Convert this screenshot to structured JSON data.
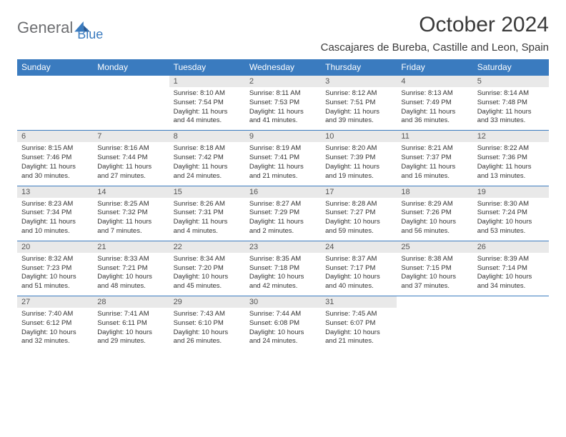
{
  "logo": {
    "text1": "General",
    "text2": "Blue"
  },
  "title": "October 2024",
  "location": "Cascajares de Bureba, Castille and Leon, Spain",
  "colors": {
    "header_bg": "#3a7bbf",
    "header_text": "#ffffff",
    "daynum_bg": "#e9e9e9",
    "border": "#3a7bbf",
    "logo_gray": "#6d6e71",
    "logo_blue": "#3a7bbf"
  },
  "weekdays": [
    "Sunday",
    "Monday",
    "Tuesday",
    "Wednesday",
    "Thursday",
    "Friday",
    "Saturday"
  ],
  "weeks": [
    [
      {
        "num": "",
        "sunrise": "",
        "sunset": "",
        "daylight": "",
        "empty": true
      },
      {
        "num": "",
        "sunrise": "",
        "sunset": "",
        "daylight": "",
        "empty": true
      },
      {
        "num": "1",
        "sunrise": "Sunrise: 8:10 AM",
        "sunset": "Sunset: 7:54 PM",
        "daylight": "Daylight: 11 hours and 44 minutes."
      },
      {
        "num": "2",
        "sunrise": "Sunrise: 8:11 AM",
        "sunset": "Sunset: 7:53 PM",
        "daylight": "Daylight: 11 hours and 41 minutes."
      },
      {
        "num": "3",
        "sunrise": "Sunrise: 8:12 AM",
        "sunset": "Sunset: 7:51 PM",
        "daylight": "Daylight: 11 hours and 39 minutes."
      },
      {
        "num": "4",
        "sunrise": "Sunrise: 8:13 AM",
        "sunset": "Sunset: 7:49 PM",
        "daylight": "Daylight: 11 hours and 36 minutes."
      },
      {
        "num": "5",
        "sunrise": "Sunrise: 8:14 AM",
        "sunset": "Sunset: 7:48 PM",
        "daylight": "Daylight: 11 hours and 33 minutes."
      }
    ],
    [
      {
        "num": "6",
        "sunrise": "Sunrise: 8:15 AM",
        "sunset": "Sunset: 7:46 PM",
        "daylight": "Daylight: 11 hours and 30 minutes."
      },
      {
        "num": "7",
        "sunrise": "Sunrise: 8:16 AM",
        "sunset": "Sunset: 7:44 PM",
        "daylight": "Daylight: 11 hours and 27 minutes."
      },
      {
        "num": "8",
        "sunrise": "Sunrise: 8:18 AM",
        "sunset": "Sunset: 7:42 PM",
        "daylight": "Daylight: 11 hours and 24 minutes."
      },
      {
        "num": "9",
        "sunrise": "Sunrise: 8:19 AM",
        "sunset": "Sunset: 7:41 PM",
        "daylight": "Daylight: 11 hours and 21 minutes."
      },
      {
        "num": "10",
        "sunrise": "Sunrise: 8:20 AM",
        "sunset": "Sunset: 7:39 PM",
        "daylight": "Daylight: 11 hours and 19 minutes."
      },
      {
        "num": "11",
        "sunrise": "Sunrise: 8:21 AM",
        "sunset": "Sunset: 7:37 PM",
        "daylight": "Daylight: 11 hours and 16 minutes."
      },
      {
        "num": "12",
        "sunrise": "Sunrise: 8:22 AM",
        "sunset": "Sunset: 7:36 PM",
        "daylight": "Daylight: 11 hours and 13 minutes."
      }
    ],
    [
      {
        "num": "13",
        "sunrise": "Sunrise: 8:23 AM",
        "sunset": "Sunset: 7:34 PM",
        "daylight": "Daylight: 11 hours and 10 minutes."
      },
      {
        "num": "14",
        "sunrise": "Sunrise: 8:25 AM",
        "sunset": "Sunset: 7:32 PM",
        "daylight": "Daylight: 11 hours and 7 minutes."
      },
      {
        "num": "15",
        "sunrise": "Sunrise: 8:26 AM",
        "sunset": "Sunset: 7:31 PM",
        "daylight": "Daylight: 11 hours and 4 minutes."
      },
      {
        "num": "16",
        "sunrise": "Sunrise: 8:27 AM",
        "sunset": "Sunset: 7:29 PM",
        "daylight": "Daylight: 11 hours and 2 minutes."
      },
      {
        "num": "17",
        "sunrise": "Sunrise: 8:28 AM",
        "sunset": "Sunset: 7:27 PM",
        "daylight": "Daylight: 10 hours and 59 minutes."
      },
      {
        "num": "18",
        "sunrise": "Sunrise: 8:29 AM",
        "sunset": "Sunset: 7:26 PM",
        "daylight": "Daylight: 10 hours and 56 minutes."
      },
      {
        "num": "19",
        "sunrise": "Sunrise: 8:30 AM",
        "sunset": "Sunset: 7:24 PM",
        "daylight": "Daylight: 10 hours and 53 minutes."
      }
    ],
    [
      {
        "num": "20",
        "sunrise": "Sunrise: 8:32 AM",
        "sunset": "Sunset: 7:23 PM",
        "daylight": "Daylight: 10 hours and 51 minutes."
      },
      {
        "num": "21",
        "sunrise": "Sunrise: 8:33 AM",
        "sunset": "Sunset: 7:21 PM",
        "daylight": "Daylight: 10 hours and 48 minutes."
      },
      {
        "num": "22",
        "sunrise": "Sunrise: 8:34 AM",
        "sunset": "Sunset: 7:20 PM",
        "daylight": "Daylight: 10 hours and 45 minutes."
      },
      {
        "num": "23",
        "sunrise": "Sunrise: 8:35 AM",
        "sunset": "Sunset: 7:18 PM",
        "daylight": "Daylight: 10 hours and 42 minutes."
      },
      {
        "num": "24",
        "sunrise": "Sunrise: 8:37 AM",
        "sunset": "Sunset: 7:17 PM",
        "daylight": "Daylight: 10 hours and 40 minutes."
      },
      {
        "num": "25",
        "sunrise": "Sunrise: 8:38 AM",
        "sunset": "Sunset: 7:15 PM",
        "daylight": "Daylight: 10 hours and 37 minutes."
      },
      {
        "num": "26",
        "sunrise": "Sunrise: 8:39 AM",
        "sunset": "Sunset: 7:14 PM",
        "daylight": "Daylight: 10 hours and 34 minutes."
      }
    ],
    [
      {
        "num": "27",
        "sunrise": "Sunrise: 7:40 AM",
        "sunset": "Sunset: 6:12 PM",
        "daylight": "Daylight: 10 hours and 32 minutes."
      },
      {
        "num": "28",
        "sunrise": "Sunrise: 7:41 AM",
        "sunset": "Sunset: 6:11 PM",
        "daylight": "Daylight: 10 hours and 29 minutes."
      },
      {
        "num": "29",
        "sunrise": "Sunrise: 7:43 AM",
        "sunset": "Sunset: 6:10 PM",
        "daylight": "Daylight: 10 hours and 26 minutes."
      },
      {
        "num": "30",
        "sunrise": "Sunrise: 7:44 AM",
        "sunset": "Sunset: 6:08 PM",
        "daylight": "Daylight: 10 hours and 24 minutes."
      },
      {
        "num": "31",
        "sunrise": "Sunrise: 7:45 AM",
        "sunset": "Sunset: 6:07 PM",
        "daylight": "Daylight: 10 hours and 21 minutes."
      },
      {
        "num": "",
        "sunrise": "",
        "sunset": "",
        "daylight": "",
        "empty": true
      },
      {
        "num": "",
        "sunrise": "",
        "sunset": "",
        "daylight": "",
        "empty": true
      }
    ]
  ]
}
